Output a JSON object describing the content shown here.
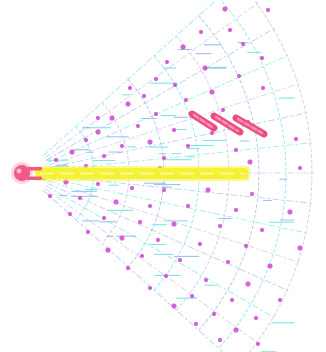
{
  "colors": {
    "background": "#ffffff",
    "grid_cyan": "#6fe0e3",
    "grid_lavender": "#c9b4ef",
    "grid_blue": "#8fb6f0",
    "target": "#d44fd6",
    "ship": "#ef5a86",
    "ship_glow": "#ff9bbf",
    "beam": "#f4f236",
    "beam_edge": "#d9d61c",
    "missile": "#e94e7d",
    "missile_core": "#ff8fb5"
  },
  "icons": {
    "ship": "ship-icon",
    "beam": "laser-beam",
    "missile": "missile-icon",
    "target": "target-dot-icon"
  },
  "scene": {
    "weapon_mode": "beam",
    "missiles_in_flight": 3
  }
}
